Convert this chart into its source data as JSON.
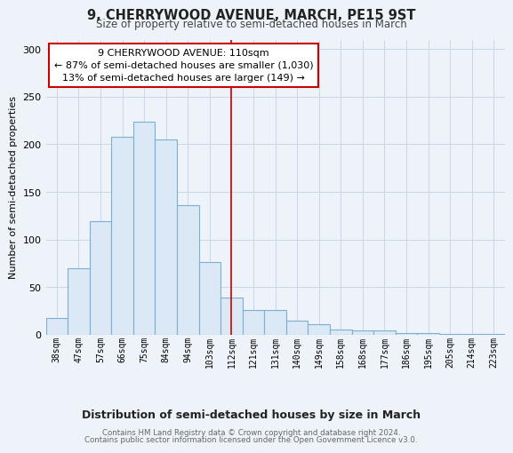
{
  "title": "9, CHERRYWOOD AVENUE, MARCH, PE15 9ST",
  "subtitle": "Size of property relative to semi-detached houses in March",
  "xlabel": "Distribution of semi-detached houses by size in March",
  "ylabel": "Number of semi-detached properties",
  "bar_labels": [
    "38sqm",
    "47sqm",
    "57sqm",
    "66sqm",
    "75sqm",
    "84sqm",
    "94sqm",
    "103sqm",
    "112sqm",
    "121sqm",
    "131sqm",
    "140sqm",
    "149sqm",
    "158sqm",
    "168sqm",
    "177sqm",
    "186sqm",
    "195sqm",
    "205sqm",
    "214sqm",
    "223sqm"
  ],
  "bar_values": [
    18,
    70,
    119,
    208,
    224,
    205,
    136,
    76,
    39,
    26,
    26,
    15,
    11,
    6,
    5,
    5,
    2,
    2,
    1,
    1,
    1
  ],
  "bar_color": "#dbe8f5",
  "bar_edge_color": "#7bafd4",
  "marker_index": 8,
  "marker_line_color": "#cc0000",
  "annotation_line1": "9 CHERRYWOOD AVENUE: 110sqm",
  "annotation_line2": "← 87% of semi-detached houses are smaller (1,030)",
  "annotation_line3": "13% of semi-detached houses are larger (149) →",
  "annotation_box_color": "#ffffff",
  "annotation_box_edge": "#cc0000",
  "ylim": [
    0,
    310
  ],
  "yticks": [
    0,
    50,
    100,
    150,
    200,
    250,
    300
  ],
  "footer_line1": "Contains HM Land Registry data © Crown copyright and database right 2024.",
  "footer_line2": "Contains public sector information licensed under the Open Government Licence v3.0.",
  "bg_color": "#eef3fa"
}
